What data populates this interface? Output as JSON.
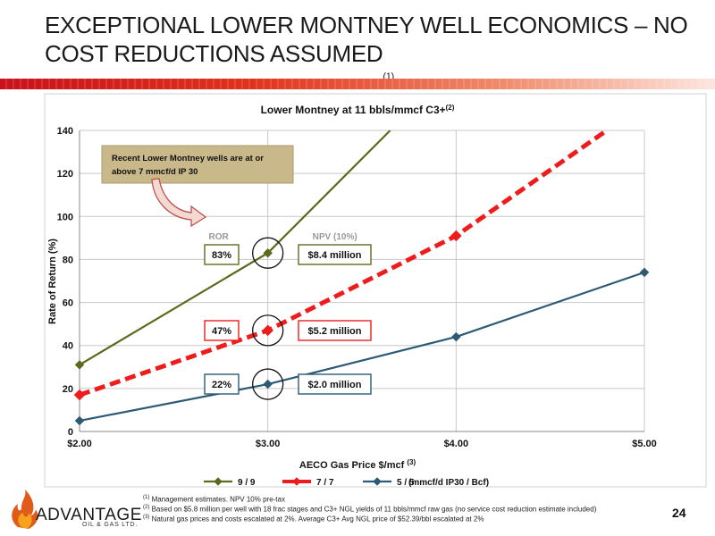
{
  "page": {
    "title": "EXCEPTIONAL LOWER MONTNEY WELL ECONOMICS – NO COST REDUCTIONS ASSUMED",
    "title_sup": "(1)",
    "page_number": "24"
  },
  "footnotes": [
    {
      "mark": "(1)",
      "text": "Management estimates. NPV 10% pre-tax"
    },
    {
      "mark": "(2)",
      "text": "Based on $5.8 million per well with 18 frac stages and C3+ NGL yields of 11 bbls/mmcf raw gas (no service cost reduction estimate included)"
    },
    {
      "mark": "(3)",
      "text": "Natural gas prices and costs escalated at 2%. Average C3+ Avg NGL price of $52.39/bbl escalated at 2%"
    }
  ],
  "logo": {
    "name": "ADVANTAGE",
    "sub": "OIL & GAS LTD."
  },
  "colors": {
    "s1": "#5b6b1e",
    "s2": "#ee1c1c",
    "s3": "#2c5a75",
    "callout_bg": "#c9b88a",
    "accent": "#c9111b"
  },
  "chart_data": {
    "type": "line",
    "title": "Lower Montney at 11 bbls/mmcf  C3+",
    "title_sup": "(2)",
    "xlabel": "AECO Gas Price $/mcf",
    "xlabel_sup": "(3)",
    "ylabel": "Rate of Return (%)",
    "xlim": [
      2,
      5
    ],
    "ylim": [
      0,
      140
    ],
    "xticks": [
      2,
      3,
      4,
      5
    ],
    "xtick_labels": [
      "$2.00",
      "$3.00",
      "$4.00",
      "$5.00"
    ],
    "yticks": [
      0,
      20,
      40,
      60,
      80,
      100,
      120,
      140
    ],
    "ytick_labels": [
      "0",
      "20",
      "40",
      "60",
      "80",
      "100",
      "120",
      "140"
    ],
    "grid": true,
    "legend_position": "bottom",
    "legend_suffix": "(mmcf/d IP30 / Bcf)",
    "series": [
      {
        "name": "9 / 9",
        "x": [
          2,
          3,
          3.65
        ],
        "y": [
          31,
          83,
          140
        ],
        "marker_count": 2,
        "dashed": false
      },
      {
        "name": "7 / 7",
        "x": [
          2,
          3,
          4,
          4.8
        ],
        "y": [
          17,
          47,
          91,
          140
        ],
        "marker_count": 3,
        "dashed": true
      },
      {
        "name": "5 / 5",
        "x": [
          2,
          3,
          4,
          5
        ],
        "y": [
          5,
          22,
          44,
          74
        ],
        "marker_count": 4,
        "dashed": false
      }
    ],
    "column_headers": {
      "ror": "ROR",
      "npv": "NPV (10%)"
    },
    "labels": [
      {
        "series": 0,
        "ror": "83%",
        "npv": "$8.4 million"
      },
      {
        "series": 1,
        "ror": "47%",
        "npv": "$5.2 million"
      },
      {
        "series": 2,
        "ror": "22%",
        "npv": "$2.0 million"
      }
    ],
    "callout": "Recent Lower Montney wells are at or above 7 mmcf/d IP 30"
  }
}
